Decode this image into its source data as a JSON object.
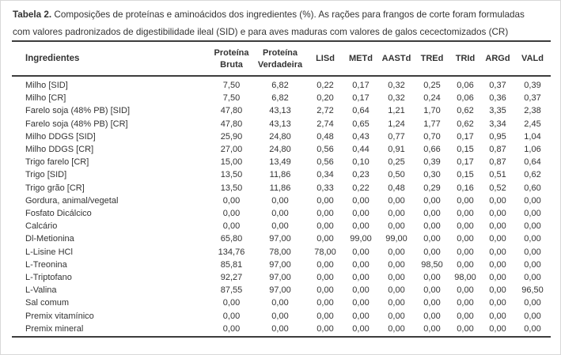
{
  "theme": {
    "text_color": "#333333",
    "rule_color": "#3d3d3d",
    "page_border_color": "#d8d8d8"
  },
  "caption": {
    "bold": "Tabela 2.",
    "line1": "Composições de proteínas e aminoácidos dos ingredientes (%). As rações para frangos de corte foram formuladas",
    "line2": "com valores padronizados de digestibilidade ileal (SID) e para aves maduras com valores de galos cecectomizados (CR)"
  },
  "table": {
    "columns": [
      "Ingredientes",
      "Proteína Bruta",
      "Proteína Verdadeira",
      "LISd",
      "METd",
      "AASTd",
      "TREd",
      "TRId",
      "ARGd",
      "VALd"
    ],
    "rows": [
      {
        "label": "Milho [SID]",
        "values": [
          "7,50",
          "6,82",
          "0,22",
          "0,17",
          "0,32",
          "0,25",
          "0,06",
          "0,37",
          "0,39"
        ]
      },
      {
        "label": "Milho [CR]",
        "values": [
          "7,50",
          "6,82",
          "0,20",
          "0,17",
          "0,32",
          "0,24",
          "0,06",
          "0,36",
          "0,37"
        ]
      },
      {
        "label": "Farelo soja (48% PB) [SID]",
        "values": [
          "47,80",
          "43,13",
          "2,72",
          "0,64",
          "1,21",
          "1,70",
          "0,62",
          "3,35",
          "2,38"
        ]
      },
      {
        "label": "Farelo soja (48% PB) [CR]",
        "values": [
          "47,80",
          "43,13",
          "2,74",
          "0,65",
          "1,24",
          "1,77",
          "0,62",
          "3,34",
          "2,45"
        ]
      },
      {
        "label": "Milho DDGS [SID]",
        "values": [
          "25,90",
          "24,80",
          "0,48",
          "0,43",
          "0,77",
          "0,70",
          "0,17",
          "0,95",
          "1,04"
        ]
      },
      {
        "label": "Milho DDGS [CR]",
        "values": [
          "27,00",
          "24,80",
          "0,56",
          "0,44",
          "0,91",
          "0,66",
          "0,15",
          "0,87",
          "1,06"
        ]
      },
      {
        "label": "Trigo farelo [CR]",
        "values": [
          "15,00",
          "13,49",
          "0,56",
          "0,10",
          "0,25",
          "0,39",
          "0,17",
          "0,87",
          "0,64"
        ]
      },
      {
        "label": "Trigo [SID]",
        "values": [
          "13,50",
          "11,86",
          "0,34",
          "0,23",
          "0,50",
          "0,30",
          "0,15",
          "0,51",
          "0,62"
        ]
      },
      {
        "label": "Trigo grão [CR]",
        "values": [
          "13,50",
          "11,86",
          "0,33",
          "0,22",
          "0,48",
          "0,29",
          "0,16",
          "0,52",
          "0,60"
        ]
      },
      {
        "label": "Gordura, animal/vegetal",
        "values": [
          "0,00",
          "0,00",
          "0,00",
          "0,00",
          "0,00",
          "0,00",
          "0,00",
          "0,00",
          "0,00"
        ]
      },
      {
        "label": "Fosfato Dicálcico",
        "values": [
          "0,00",
          "0,00",
          "0,00",
          "0,00",
          "0,00",
          "0,00",
          "0,00",
          "0,00",
          "0,00"
        ]
      },
      {
        "label": "Calcário",
        "values": [
          "0,00",
          "0,00",
          "0,00",
          "0,00",
          "0,00",
          "0,00",
          "0,00",
          "0,00",
          "0,00"
        ]
      },
      {
        "label": "Dl-Metionina",
        "values": [
          "65,80",
          "97,00",
          "0,00",
          "99,00",
          "99,00",
          "0,00",
          "0,00",
          "0,00",
          "0,00"
        ]
      },
      {
        "label": "L-Lisine HCl",
        "values": [
          "134,76",
          "78,00",
          "78,00",
          "0,00",
          "0,00",
          "0,00",
          "0,00",
          "0,00",
          "0,00"
        ]
      },
      {
        "label": "L-Treonina",
        "values": [
          "85,81",
          "97,00",
          "0,00",
          "0,00",
          "0,00",
          "98,50",
          "0,00",
          "0,00",
          "0,00"
        ]
      },
      {
        "label": "L-Triptofano",
        "values": [
          "92,27",
          "97,00",
          "0,00",
          "0,00",
          "0,00",
          "0,00",
          "98,00",
          "0,00",
          "0,00"
        ]
      },
      {
        "label": "L-Valina",
        "values": [
          "87,55",
          "97,00",
          "0,00",
          "0,00",
          "0,00",
          "0,00",
          "0,00",
          "0,00",
          "96,50"
        ]
      },
      {
        "label": "Sal comum",
        "values": [
          "0,00",
          "0,00",
          "0,00",
          "0,00",
          "0,00",
          "0,00",
          "0,00",
          "0,00",
          "0,00"
        ]
      },
      {
        "label": "Premix vitamínico",
        "values": [
          "0,00",
          "0,00",
          "0,00",
          "0,00",
          "0,00",
          "0,00",
          "0,00",
          "0,00",
          "0,00"
        ]
      },
      {
        "label": "Premix mineral",
        "values": [
          "0,00",
          "0,00",
          "0,00",
          "0,00",
          "0,00",
          "0,00",
          "0,00",
          "0,00",
          "0,00"
        ]
      }
    ]
  }
}
